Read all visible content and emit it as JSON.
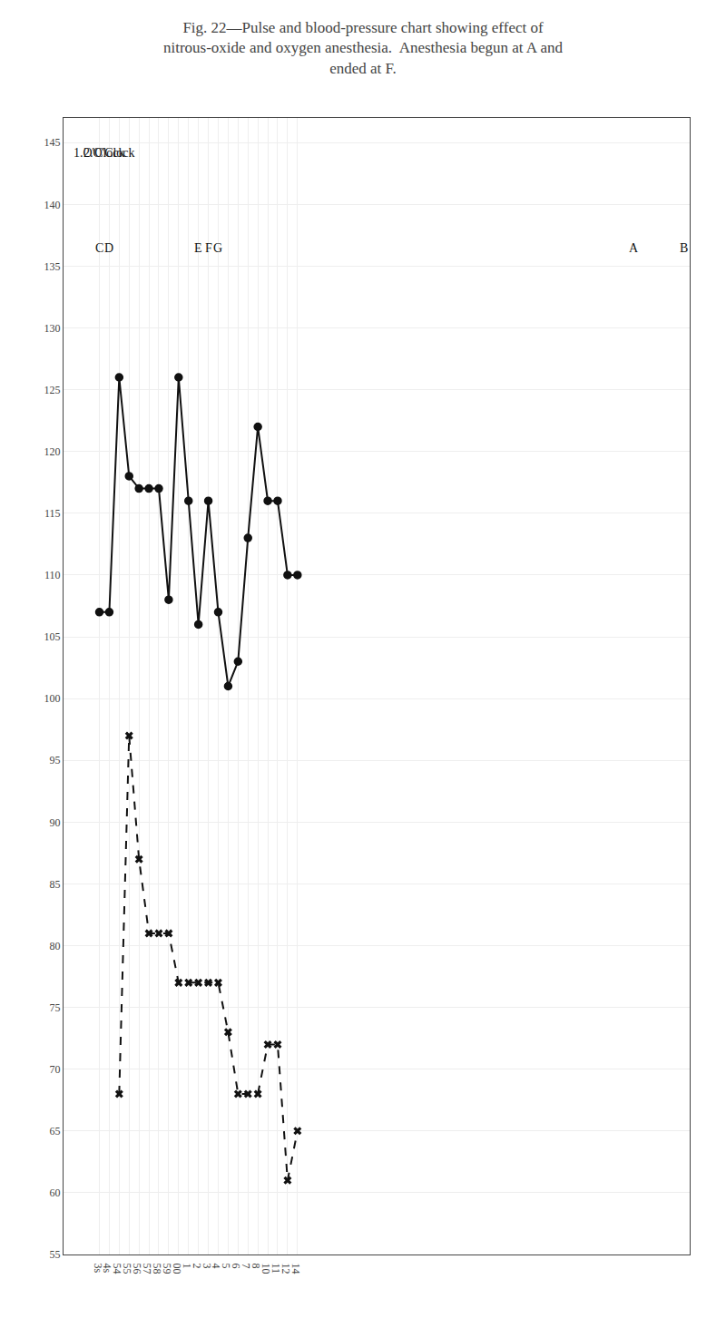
{
  "chart_data": {
    "type": "line",
    "title": "Fig. 22—Pulse and blood-pressure chart showing effect of nitrous-oxide and oxygen anesthesia.  Anesthesia begun at A and ended at F.",
    "categories": [
      "3s",
      "4s",
      "54",
      "55",
      "56",
      "57",
      "58",
      "59",
      "00",
      "1",
      "2",
      "3",
      "4",
      "5",
      "6",
      "7",
      "8",
      "10",
      "11",
      "12",
      "14"
    ],
    "series": [
      {
        "color": "#111111",
        "marker": "circle",
        "line_style": "solid",
        "values": [
          107,
          107,
          126,
          118,
          117,
          117,
          117,
          108,
          126,
          116,
          106,
          116,
          107,
          101,
          103,
          113,
          122,
          116,
          116,
          110,
          110
        ]
      },
      {
        "color": "#111111",
        "marker": "x",
        "line_style": "dashed",
        "values": [
          null,
          null,
          68,
          97,
          87,
          81,
          81,
          81,
          77,
          77,
          77,
          77,
          77,
          73,
          68,
          68,
          68,
          72,
          72,
          61,
          65
        ]
      }
    ],
    "ylim": [
      55,
      147
    ],
    "yticks": [
      55,
      60,
      65,
      70,
      75,
      80,
      85,
      90,
      95,
      100,
      105,
      110,
      115,
      120,
      125,
      130,
      135,
      140,
      145
    ],
    "grid": true,
    "annotations": [
      {
        "text": "A",
        "x": "54",
        "y": 136.5
      },
      {
        "text": "B",
        "x": "59",
        "y": 136.5
      },
      {
        "text": "C",
        "x": "00",
        "y": 136.5
      },
      {
        "text": "D",
        "x": "1",
        "y": 136.5
      },
      {
        "text": "E",
        "x": "10",
        "y": 136.5
      },
      {
        "text": "F",
        "x": "11",
        "y": 136.5
      },
      {
        "text": "G",
        "x": "12",
        "y": 136.5
      },
      {
        "text": "1.O'Clock",
        "x": "3s",
        "y": 144.2
      },
      {
        "text": "2.O'Clock",
        "x": "1",
        "y": 144.2
      }
    ]
  }
}
